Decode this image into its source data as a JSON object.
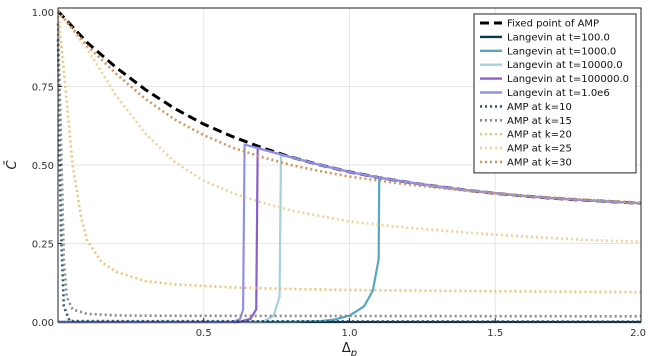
{
  "chart_data": {
    "type": "line",
    "xlabel": "Δ_p",
    "ylabel": "C̄",
    "xlim": [
      0.0,
      2.0
    ],
    "ylim": [
      0.0,
      1.0
    ],
    "xticks": [
      0.5,
      1.0,
      1.5,
      2.0
    ],
    "xtick_labels": [
      "0.5",
      "1.0",
      "1.5",
      "2.0"
    ],
    "yticks": [
      0.0,
      0.25,
      0.5,
      0.75,
      1.0
    ],
    "ytick_labels": [
      "0.00",
      "0.25",
      "0.50",
      "0.75",
      "1.00"
    ],
    "grid": true,
    "legend_position": "top-right",
    "series": [
      {
        "name": "Fixed point of AMP",
        "color": "#000000",
        "width": 3,
        "dash": "9,5",
        "x": [
          0.0,
          0.1,
          0.2,
          0.3,
          0.4,
          0.5,
          0.6,
          0.7,
          0.8,
          0.9,
          1.0,
          1.1,
          1.2,
          1.3,
          1.4,
          1.5,
          1.6,
          1.7,
          1.8,
          1.9,
          2.0
        ],
        "y": [
          0.99,
          0.89,
          0.81,
          0.74,
          0.68,
          0.63,
          0.59,
          0.555,
          0.525,
          0.5,
          0.478,
          0.46,
          0.445,
          0.432,
          0.42,
          0.41,
          0.401,
          0.394,
          0.388,
          0.383,
          0.378
        ]
      },
      {
        "name": "Langevin at t=100.0",
        "color": "#0b3a4f",
        "width": 2.2,
        "dash": "",
        "x": [
          0.0,
          2.0
        ],
        "y": [
          0.0,
          0.0
        ]
      },
      {
        "name": "Langevin at t=1000.0",
        "color": "#55a8c0",
        "width": 2.2,
        "dash": "",
        "x": [
          0.0,
          0.8,
          0.9,
          0.95,
          1.0,
          1.05,
          1.08,
          1.09,
          1.1,
          1.102,
          1.2,
          1.3,
          1.4,
          1.5,
          1.6,
          1.7,
          1.8,
          1.9,
          2.0
        ],
        "y": [
          0.0,
          0.0,
          0.003,
          0.008,
          0.02,
          0.05,
          0.1,
          0.15,
          0.2,
          0.46,
          0.445,
          0.432,
          0.42,
          0.41,
          0.401,
          0.394,
          0.388,
          0.383,
          0.378
        ]
      },
      {
        "name": "Langevin at t=10000.0",
        "color": "#a6d1da",
        "width": 2.2,
        "dash": "",
        "x": [
          0.0,
          0.7,
          0.74,
          0.76,
          0.765,
          0.8,
          0.9,
          1.0,
          1.1,
          1.2,
          1.3,
          1.4,
          1.5,
          1.6,
          1.7,
          1.8,
          1.9,
          2.0
        ],
        "y": [
          0.0,
          0.0,
          0.02,
          0.08,
          0.53,
          0.525,
          0.5,
          0.478,
          0.46,
          0.445,
          0.432,
          0.42,
          0.41,
          0.401,
          0.394,
          0.388,
          0.383,
          0.378
        ]
      },
      {
        "name": "Langevin at t=100000.0",
        "color": "#8a5fcc",
        "width": 2.2,
        "dash": "",
        "x": [
          0.0,
          0.62,
          0.66,
          0.68,
          0.685,
          0.7,
          0.8,
          0.9,
          1.0,
          1.1,
          1.2,
          1.3,
          1.4,
          1.5,
          1.6,
          1.7,
          1.8,
          1.9,
          2.0
        ],
        "y": [
          0.0,
          0.0,
          0.01,
          0.04,
          0.555,
          0.55,
          0.525,
          0.5,
          0.478,
          0.46,
          0.445,
          0.432,
          0.42,
          0.41,
          0.401,
          0.394,
          0.388,
          0.383,
          0.378
        ]
      },
      {
        "name": "Langevin at t=1.0e6",
        "color": "#8f90ea",
        "width": 2.2,
        "dash": "",
        "x": [
          0.0,
          0.6,
          0.625,
          0.635,
          0.64,
          0.7,
          0.8,
          0.9,
          1.0,
          1.1,
          1.2,
          1.3,
          1.4,
          1.5,
          1.6,
          1.7,
          1.8,
          1.9,
          2.0
        ],
        "y": [
          0.0,
          0.0,
          0.01,
          0.04,
          0.565,
          0.55,
          0.525,
          0.5,
          0.478,
          0.46,
          0.445,
          0.432,
          0.42,
          0.41,
          0.401,
          0.394,
          0.388,
          0.383,
          0.378
        ]
      },
      {
        "name": "AMP at k=10",
        "color": "#2b5a78",
        "width": 2.6,
        "dash": "2,3",
        "x": [
          0.0,
          0.01,
          0.02,
          0.04,
          2.0
        ],
        "y": [
          0.9,
          0.3,
          0.05,
          0.003,
          0.001
        ]
      },
      {
        "name": "AMP at k=15",
        "color": "#8a8a8a",
        "width": 2.6,
        "dash": "2,3",
        "x": [
          0.0,
          0.01,
          0.02,
          0.03,
          0.05,
          0.1,
          0.2,
          0.3,
          2.0
        ],
        "y": [
          0.95,
          0.6,
          0.2,
          0.08,
          0.04,
          0.026,
          0.021,
          0.02,
          0.018
        ]
      },
      {
        "name": "AMP at k=20",
        "color": "#f0c47a",
        "width": 2.6,
        "dash": "2,3",
        "x": [
          0.0,
          0.02,
          0.05,
          0.08,
          0.1,
          0.15,
          0.2,
          0.3,
          0.4,
          0.6,
          0.8,
          1.0,
          1.5,
          2.0
        ],
        "y": [
          0.99,
          0.8,
          0.5,
          0.33,
          0.26,
          0.19,
          0.16,
          0.13,
          0.12,
          0.11,
          0.105,
          0.102,
          0.098,
          0.095
        ]
      },
      {
        "name": "AMP at k=25",
        "color": "#f3d09a",
        "width": 2.6,
        "dash": "2,3",
        "x": [
          0.0,
          0.1,
          0.2,
          0.3,
          0.4,
          0.5,
          0.6,
          0.7,
          0.8,
          1.0,
          1.2,
          1.4,
          1.6,
          1.8,
          2.0
        ],
        "y": [
          0.99,
          0.87,
          0.72,
          0.6,
          0.51,
          0.45,
          0.41,
          0.38,
          0.355,
          0.32,
          0.3,
          0.285,
          0.272,
          0.262,
          0.255
        ]
      },
      {
        "name": "AMP at k=30",
        "color": "#d4935a",
        "width": 2.6,
        "dash": "2,3",
        "x": [
          0.0,
          0.1,
          0.2,
          0.3,
          0.4,
          0.5,
          0.6,
          0.7,
          0.8,
          0.9,
          1.0,
          1.2,
          1.4,
          1.6,
          1.8,
          2.0
        ],
        "y": [
          0.99,
          0.88,
          0.79,
          0.71,
          0.645,
          0.595,
          0.555,
          0.525,
          0.5,
          0.48,
          0.463,
          0.438,
          0.418,
          0.402,
          0.39,
          0.38
        ]
      }
    ]
  }
}
